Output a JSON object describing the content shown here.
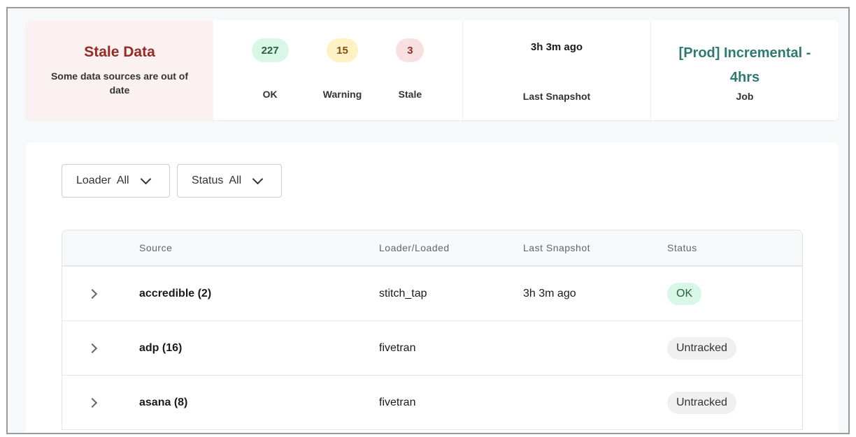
{
  "summary": {
    "title": "Stale Data",
    "description": "Some data sources are out of date",
    "counts": [
      {
        "value": "227",
        "label": "OK",
        "bg": "#d9f7e6",
        "fg": "#2a5e43"
      },
      {
        "value": "15",
        "label": "Warning",
        "bg": "#fdf2c4",
        "fg": "#8a4a12"
      },
      {
        "value": "3",
        "label": "Stale",
        "bg": "#f9e0e0",
        "fg": "#962a24"
      }
    ],
    "last_snapshot": {
      "value": "3h 3m ago",
      "label": "Last Snapshot"
    },
    "job": {
      "value": "[Prod] Incremental - 4hrs",
      "label": "Job"
    }
  },
  "filters": [
    {
      "label": "Loader",
      "value": "All"
    },
    {
      "label": "Status",
      "value": "All"
    }
  ],
  "table": {
    "columns": [
      "Source",
      "Loader/Loaded",
      "Last Snapshot",
      "Status"
    ],
    "rows": [
      {
        "source": "accredible (2)",
        "loader": "stitch_tap",
        "last_snapshot": "3h 3m ago",
        "status": "OK"
      },
      {
        "source": "adp (16)",
        "loader": "fivetran",
        "last_snapshot": "",
        "status": "Untracked"
      },
      {
        "source": "asana (8)",
        "loader": "fivetran",
        "last_snapshot": "",
        "status": "Untracked"
      }
    ]
  },
  "colors": {
    "ok_badge": "#d9f7e6",
    "untracked_badge": "#f0f0f0"
  }
}
